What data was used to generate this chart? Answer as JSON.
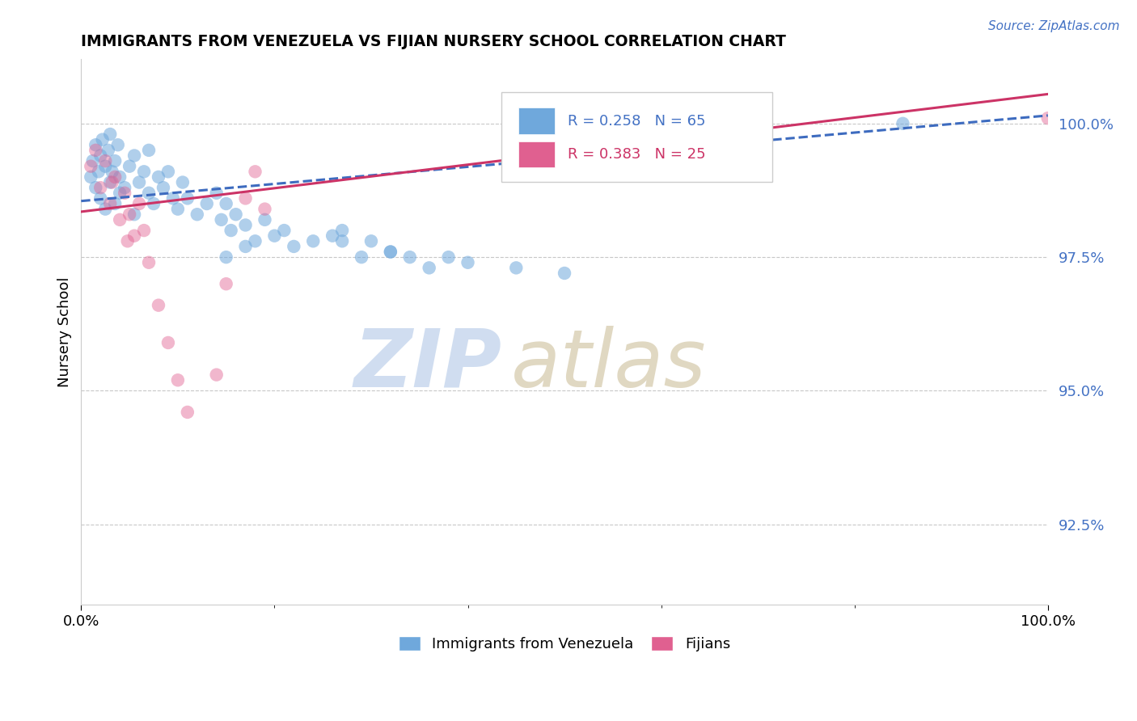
{
  "title": "IMMIGRANTS FROM VENEZUELA VS FIJIAN NURSERY SCHOOL CORRELATION CHART",
  "source": "Source: ZipAtlas.com",
  "ylabel": "Nursery School",
  "yticks": [
    92.5,
    95.0,
    97.5,
    100.0
  ],
  "ytick_labels": [
    "92.5%",
    "95.0%",
    "97.5%",
    "100.0%"
  ],
  "xrange": [
    0.0,
    100.0
  ],
  "yrange": [
    91.0,
    101.2
  ],
  "legend1_label": "Immigrants from Venezuela",
  "legend2_label": "Fijians",
  "R1": "0.258",
  "N1": "65",
  "R2": "0.383",
  "N2": "25",
  "color_blue": "#6fa8dc",
  "color_pink": "#e06090",
  "line_blue": "#3d6bbf",
  "line_pink": "#cc3366",
  "blue_line_x": [
    0,
    100
  ],
  "blue_line_y": [
    98.55,
    100.15
  ],
  "pink_line_x": [
    0,
    100
  ],
  "pink_line_y": [
    98.35,
    100.55
  ],
  "blue_x": [
    1.0,
    1.2,
    1.5,
    1.5,
    1.8,
    2.0,
    2.0,
    2.2,
    2.5,
    2.5,
    2.8,
    3.0,
    3.0,
    3.2,
    3.5,
    3.5,
    3.8,
    4.0,
    4.0,
    4.5,
    5.0,
    5.5,
    5.5,
    6.0,
    6.5,
    7.0,
    7.0,
    7.5,
    8.0,
    8.5,
    9.0,
    9.5,
    10.0,
    10.5,
    11.0,
    12.0,
    13.0,
    14.0,
    14.5,
    15.0,
    15.5,
    16.0,
    17.0,
    18.0,
    19.0,
    20.0,
    21.0,
    22.0,
    24.0,
    26.0,
    27.0,
    29.0,
    30.0,
    32.0,
    34.0,
    36.0,
    38.0,
    40.0,
    45.0,
    27.0,
    32.0,
    15.0,
    17.0,
    85.0,
    50.0
  ],
  "blue_y": [
    99.0,
    99.3,
    99.6,
    98.8,
    99.1,
    99.4,
    98.6,
    99.7,
    99.2,
    98.4,
    99.5,
    99.8,
    98.9,
    99.1,
    99.3,
    98.5,
    99.6,
    99.0,
    98.7,
    98.8,
    99.2,
    99.4,
    98.3,
    98.9,
    99.1,
    98.7,
    99.5,
    98.5,
    99.0,
    98.8,
    99.1,
    98.6,
    98.4,
    98.9,
    98.6,
    98.3,
    98.5,
    98.7,
    98.2,
    98.5,
    98.0,
    98.3,
    98.1,
    97.8,
    98.2,
    97.9,
    98.0,
    97.7,
    97.8,
    97.9,
    98.0,
    97.5,
    97.8,
    97.6,
    97.5,
    97.3,
    97.5,
    97.4,
    97.3,
    97.8,
    97.6,
    97.5,
    97.7,
    100.0,
    97.2
  ],
  "pink_x": [
    1.0,
    1.5,
    2.0,
    2.5,
    3.0,
    3.5,
    4.0,
    4.5,
    5.0,
    5.5,
    6.0,
    6.5,
    7.0,
    8.0,
    9.0,
    10.0,
    11.0,
    14.0,
    15.0,
    17.0,
    18.0,
    19.0,
    100.0,
    3.2,
    4.8
  ],
  "pink_y": [
    99.2,
    99.5,
    98.8,
    99.3,
    98.5,
    99.0,
    98.2,
    98.7,
    98.3,
    97.9,
    98.5,
    98.0,
    97.4,
    96.6,
    95.9,
    95.2,
    94.6,
    95.3,
    97.0,
    98.6,
    99.1,
    98.4,
    100.1,
    98.9,
    97.8
  ]
}
